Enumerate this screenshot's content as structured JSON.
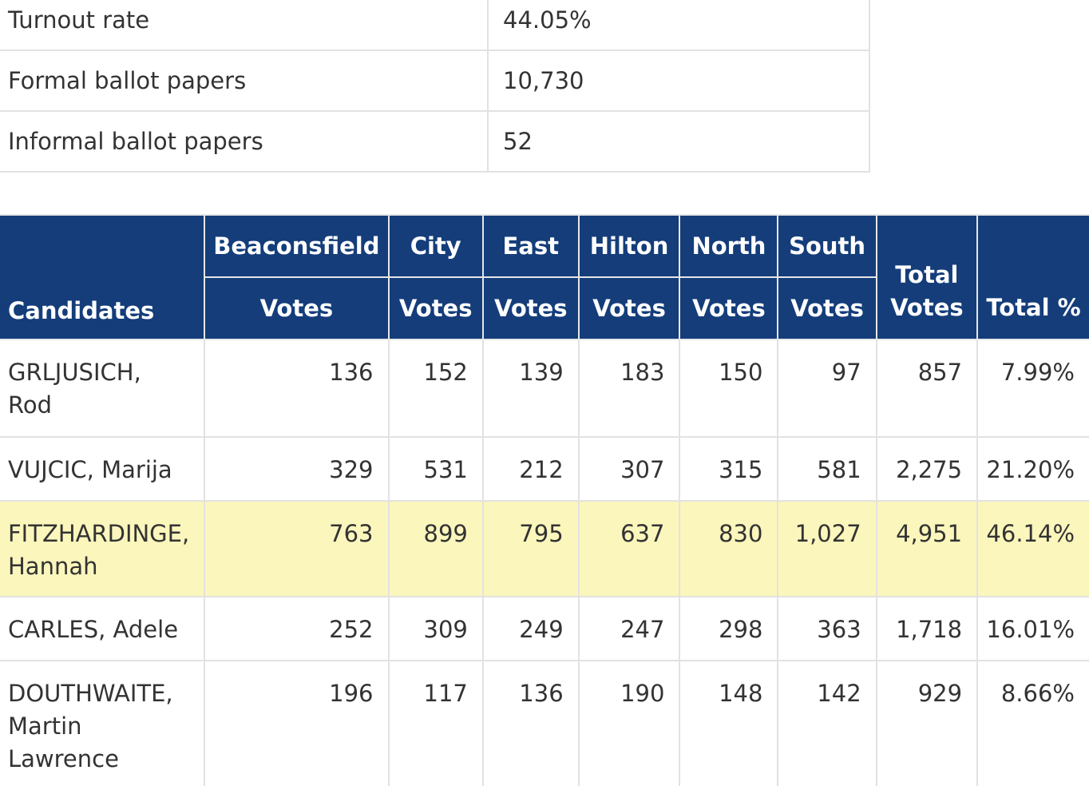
{
  "summary": [
    {
      "label": "Turnout rate",
      "value": "44.05%"
    },
    {
      "label": "Formal ballot papers",
      "value": "10,730"
    },
    {
      "label": "Informal ballot papers",
      "value": "52"
    }
  ],
  "results": {
    "candidates_header": "Candidates",
    "wards": [
      "Beaconsfield",
      "City",
      "East",
      "Hilton",
      "North",
      "South"
    ],
    "votes_label": "Votes",
    "total_votes_header": "Total Votes",
    "total_pct_header": "Total %",
    "highlight_color": "#fbf6bc",
    "header_color": "#143d7a",
    "rows": [
      {
        "name": "GRLJUSICH, Rod",
        "votes": [
          "136",
          "152",
          "139",
          "183",
          "150",
          "97"
        ],
        "total": "857",
        "pct": "7.99%",
        "highlight": false
      },
      {
        "name": "VUJCIC, Marija",
        "votes": [
          "329",
          "531",
          "212",
          "307",
          "315",
          "581"
        ],
        "total": "2,275",
        "pct": "21.20%",
        "highlight": false
      },
      {
        "name": "FITZHARDINGE, Hannah",
        "votes": [
          "763",
          "899",
          "795",
          "637",
          "830",
          "1,027"
        ],
        "total": "4,951",
        "pct": "46.14%",
        "highlight": true
      },
      {
        "name": "CARLES, Adele",
        "votes": [
          "252",
          "309",
          "249",
          "247",
          "298",
          "363"
        ],
        "total": "1,718",
        "pct": "16.01%",
        "highlight": false
      },
      {
        "name": "DOUTHWAITE, Martin Lawrence",
        "votes": [
          "196",
          "117",
          "136",
          "190",
          "148",
          "142"
        ],
        "total": "929",
        "pct": "8.66%",
        "highlight": false
      }
    ]
  }
}
